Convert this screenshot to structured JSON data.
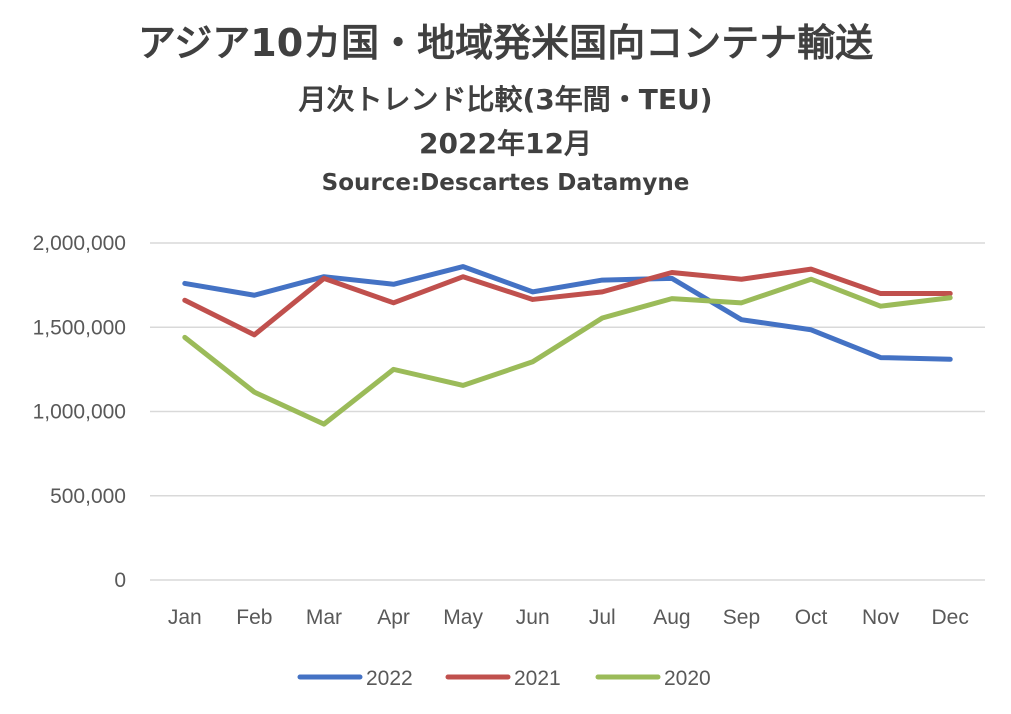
{
  "title": "アジア10カ国・地域発米国向コンテナ輸送",
  "subtitle": "月次トレンド比較(3年間・TEU)",
  "period": "2022年12月",
  "source": "Source:Descartes Datamyne",
  "chart_data": {
    "type": "line",
    "title": "アジア10カ国・地域発米国向コンテナ輸送",
    "categories": [
      "Jan",
      "Feb",
      "Mar",
      "Apr",
      "May",
      "Jun",
      "Jul",
      "Aug",
      "Sep",
      "Oct",
      "Nov",
      "Dec"
    ],
    "y_ticks": [
      "0",
      "500,000",
      "1,000,000",
      "1,500,000",
      "2,000,000"
    ],
    "ylim": [
      0,
      2000000
    ],
    "grid": true,
    "legend_position": "bottom",
    "series": [
      {
        "name": "2022",
        "color": "#4472C4",
        "values": [
          1760000,
          1690000,
          1800000,
          1755000,
          1860000,
          1710000,
          1780000,
          1790000,
          1545000,
          1485000,
          1320000,
          1310000
        ]
      },
      {
        "name": "2021",
        "color": "#C0504D",
        "values": [
          1660000,
          1455000,
          1790000,
          1645000,
          1800000,
          1665000,
          1710000,
          1825000,
          1785000,
          1845000,
          1700000,
          1700000
        ]
      },
      {
        "name": "2020",
        "color": "#9BBB59",
        "values": [
          1440000,
          1115000,
          925000,
          1250000,
          1155000,
          1295000,
          1555000,
          1670000,
          1645000,
          1785000,
          1625000,
          1675000
        ]
      }
    ]
  }
}
